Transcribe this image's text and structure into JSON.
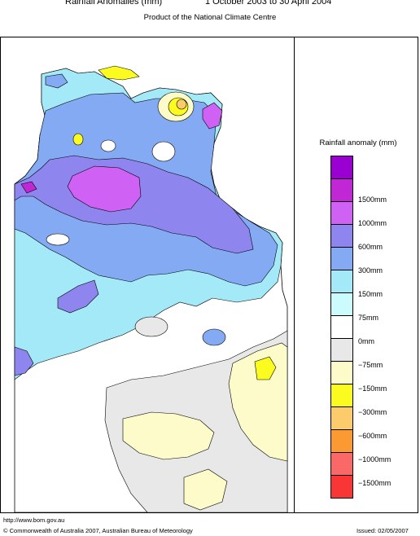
{
  "header": {
    "title_left": "Rainfall Anomalies (mm)",
    "title_right": "1 October 2003 to 30 April 2004",
    "subtitle": "Product of the National Climate Centre"
  },
  "legend": {
    "title": "Rainfall anomaly (mm)",
    "items": [
      {
        "label": "",
        "color": "#9a00d2"
      },
      {
        "label": "1500mm",
        "color": "#c227d5"
      },
      {
        "label": "1000mm",
        "color": "#cf62f5"
      },
      {
        "label": "600mm",
        "color": "#8f85ef"
      },
      {
        "label": "300mm",
        "color": "#83aaf2"
      },
      {
        "label": "150mm",
        "color": "#a4e9f7"
      },
      {
        "label": "75mm",
        "color": "#cbfbfc"
      },
      {
        "label": "0mm",
        "color": "#ffffff"
      },
      {
        "label": "−75mm",
        "color": "#e8e8e8"
      },
      {
        "label": "−150mm",
        "color": "#fdfbc9"
      },
      {
        "label": "−300mm",
        "color": "#fbfb20"
      },
      {
        "label": "−600mm",
        "color": "#fccc6c"
      },
      {
        "label": "−1000mm",
        "color": "#fb9933"
      },
      {
        "label": "−1500mm",
        "color": "#fa6868"
      },
      {
        "label": "",
        "color": "#fa3535"
      }
    ]
  },
  "footer": {
    "url": "http://www.bom.gov.au",
    "copyright": "© Commonwealth of Australia 2007, Australian Bureau of Meteorology",
    "issued": "Issued: 02/05/2007"
  }
}
